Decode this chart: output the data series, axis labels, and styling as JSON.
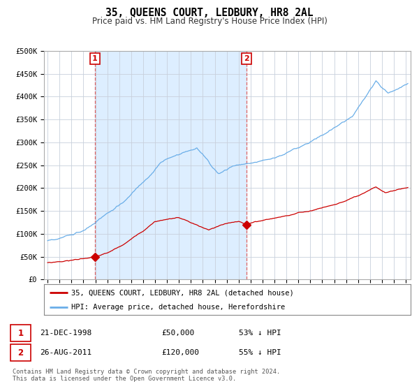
{
  "title": "35, QUEENS COURT, LEDBURY, HR8 2AL",
  "subtitle": "Price paid vs. HM Land Registry's House Price Index (HPI)",
  "line1_label": "35, QUEENS COURT, LEDBURY, HR8 2AL (detached house)",
  "line2_label": "HPI: Average price, detached house, Herefordshire",
  "line1_color": "#cc0000",
  "line2_color": "#6aaee8",
  "bg_shaded_color": "#ddeeff",
  "annotation1": {
    "label": "1",
    "x_year": 1998.97,
    "price": 50000,
    "date_str": "21-DEC-1998",
    "price_str": "£50,000",
    "hpi_str": "53% ↓ HPI"
  },
  "annotation2": {
    "label": "2",
    "x_year": 2011.65,
    "price": 120000,
    "date_str": "26-AUG-2011",
    "price_str": "£120,000",
    "hpi_str": "55% ↓ HPI"
  },
  "ylim": [
    0,
    500000
  ],
  "xlim_start": 1994.7,
  "xlim_end": 2025.4,
  "yticks": [
    0,
    50000,
    100000,
    150000,
    200000,
    250000,
    300000,
    350000,
    400000,
    450000,
    500000
  ],
  "ytick_labels": [
    "£0",
    "£50K",
    "£100K",
    "£150K",
    "£200K",
    "£250K",
    "£300K",
    "£350K",
    "£400K",
    "£450K",
    "£500K"
  ],
  "footer": "Contains HM Land Registry data © Crown copyright and database right 2024.\nThis data is licensed under the Open Government Licence v3.0.",
  "grid_color": "#c8d0dc",
  "background_color": "#ffffff"
}
